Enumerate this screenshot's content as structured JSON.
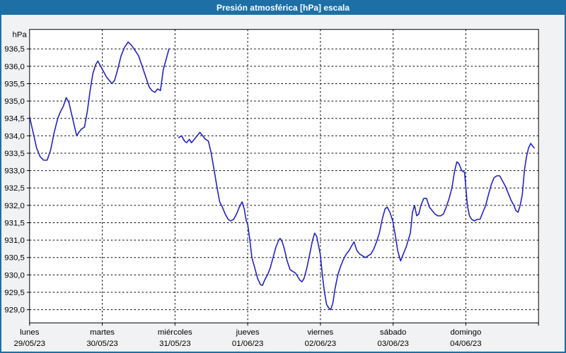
{
  "title": "Presión atmosférica [hPa] escala",
  "colors": {
    "titlebar_bg": "#1d6fa5",
    "window_border": "#1d6fa5",
    "background": "#f1f2f4",
    "plot_bg": "#ffffff",
    "grid": "#000000",
    "axis_text": "#000000",
    "line": "#2222c8",
    "title_text": "#ffffff"
  },
  "chart_data": {
    "type": "line",
    "title": "Presión atmosférica [hPa] escala",
    "ylabel": "hPa",
    "xlabel": "",
    "ylim": [
      928.62,
      937.06
    ],
    "xlim_days": [
      0,
      7
    ],
    "grid": "dashed",
    "legend": "none",
    "y_ticks": [
      936.5,
      936.0,
      935.5,
      935.0,
      934.5,
      934.0,
      933.5,
      933.0,
      932.5,
      932.0,
      931.5,
      931.0,
      930.5,
      930.0,
      929.5,
      929.0
    ],
    "y_tick_labels": [
      "936,5",
      "936,0",
      "935,5",
      "935,0",
      "934,5",
      "934,0",
      "933,5",
      "933,0",
      "932,5",
      "932,0",
      "931,5",
      "931,0",
      "930,5",
      "930,0",
      "929,5",
      "929,0"
    ],
    "x_days": [
      {
        "name": "lunes",
        "date": "29/05/23"
      },
      {
        "name": "martes",
        "date": "30/05/23"
      },
      {
        "name": "miércoles",
        "date": "31/05/23"
      },
      {
        "name": "jueves",
        "date": "01/06/23"
      },
      {
        "name": "viernes",
        "date": "02/06/23"
      },
      {
        "name": "sábado",
        "date": "03/06/23"
      },
      {
        "name": "domingo",
        "date": "04/06/23"
      }
    ],
    "series": [
      {
        "name": "Presión atmosférica",
        "color": "#2222c8",
        "segments": [
          [
            [
              0.0,
              934.55
            ],
            [
              0.048,
              934.1
            ],
            [
              0.097,
              933.65
            ],
            [
              0.145,
              933.4
            ],
            [
              0.194,
              933.3
            ],
            [
              0.242,
              933.3
            ],
            [
              0.29,
              933.6
            ],
            [
              0.339,
              934.1
            ],
            [
              0.387,
              934.5
            ],
            [
              0.426,
              934.7
            ],
            [
              0.465,
              934.85
            ],
            [
              0.503,
              935.1
            ],
            [
              0.542,
              934.95
            ],
            [
              0.581,
              934.6
            ],
            [
              0.62,
              934.25
            ],
            [
              0.649,
              934.0
            ],
            [
              0.678,
              934.1
            ],
            [
              0.716,
              934.2
            ],
            [
              0.755,
              934.25
            ],
            [
              0.794,
              934.7
            ],
            [
              0.833,
              935.3
            ],
            [
              0.871,
              935.8
            ],
            [
              0.91,
              936.05
            ],
            [
              0.939,
              936.15
            ],
            [
              0.978,
              936.0
            ],
            [
              1.017,
              935.85
            ],
            [
              1.055,
              935.7
            ],
            [
              1.094,
              935.6
            ],
            [
              1.133,
              935.5
            ],
            [
              1.171,
              935.6
            ],
            [
              1.21,
              935.9
            ],
            [
              1.259,
              936.3
            ],
            [
              1.307,
              936.55
            ],
            [
              1.355,
              936.7
            ],
            [
              1.404,
              936.6
            ],
            [
              1.452,
              936.45
            ],
            [
              1.5,
              936.3
            ],
            [
              1.549,
              936.0
            ],
            [
              1.597,
              935.7
            ],
            [
              1.646,
              935.4
            ],
            [
              1.684,
              935.3
            ],
            [
              1.723,
              935.25
            ],
            [
              1.762,
              935.35
            ],
            [
              1.8,
              935.3
            ],
            [
              1.839,
              935.9
            ],
            [
              1.878,
              936.2
            ],
            [
              1.917,
              936.5
            ]
          ],
          [
            [
              2.052,
              933.95
            ],
            [
              2.091,
              934.0
            ],
            [
              2.13,
              933.85
            ],
            [
              2.159,
              933.8
            ],
            [
              2.198,
              933.9
            ],
            [
              2.227,
              933.8
            ],
            [
              2.265,
              933.9
            ],
            [
              2.304,
              934.0
            ],
            [
              2.343,
              934.1
            ],
            [
              2.381,
              934.0
            ],
            [
              2.42,
              933.9
            ],
            [
              2.459,
              933.85
            ],
            [
              2.498,
              933.5
            ],
            [
              2.536,
              933.05
            ],
            [
              2.575,
              932.55
            ],
            [
              2.614,
              932.1
            ],
            [
              2.652,
              931.95
            ],
            [
              2.691,
              931.75
            ],
            [
              2.73,
              931.6
            ],
            [
              2.768,
              931.55
            ],
            [
              2.807,
              931.6
            ],
            [
              2.846,
              931.75
            ],
            [
              2.885,
              931.95
            ],
            [
              2.923,
              932.1
            ],
            [
              2.952,
              931.9
            ],
            [
              2.981,
              931.55
            ],
            [
              3.0,
              931.45
            ],
            [
              3.029,
              931.0
            ],
            [
              3.058,
              930.5
            ],
            [
              3.097,
              930.2
            ],
            [
              3.136,
              929.9
            ],
            [
              3.175,
              929.72
            ],
            [
              3.204,
              929.7
            ],
            [
              3.233,
              929.85
            ],
            [
              3.272,
              930.0
            ],
            [
              3.31,
              930.2
            ],
            [
              3.349,
              930.5
            ],
            [
              3.388,
              930.8
            ],
            [
              3.427,
              931.0
            ],
            [
              3.446,
              931.05
            ],
            [
              3.475,
              930.95
            ],
            [
              3.504,
              930.75
            ],
            [
              3.543,
              930.4
            ],
            [
              3.582,
              930.15
            ],
            [
              3.62,
              930.1
            ],
            [
              3.659,
              930.05
            ],
            [
              3.688,
              929.95
            ],
            [
              3.717,
              929.85
            ],
            [
              3.746,
              929.8
            ],
            [
              3.775,
              929.9
            ],
            [
              3.814,
              930.2
            ],
            [
              3.853,
              930.6
            ],
            [
              3.892,
              931.0
            ],
            [
              3.921,
              931.2
            ],
            [
              3.95,
              931.1
            ],
            [
              3.969,
              930.9
            ],
            [
              3.998,
              930.6
            ],
            [
              4.027,
              930.0
            ],
            [
              4.056,
              929.5
            ],
            [
              4.085,
              929.15
            ],
            [
              4.114,
              929.05
            ],
            [
              4.143,
              929.0
            ],
            [
              4.172,
              929.2
            ],
            [
              4.201,
              929.6
            ],
            [
              4.24,
              930.0
            ],
            [
              4.278,
              930.25
            ],
            [
              4.317,
              930.45
            ],
            [
              4.356,
              930.6
            ],
            [
              4.395,
              930.7
            ],
            [
              4.433,
              930.85
            ],
            [
              4.462,
              930.95
            ],
            [
              4.501,
              930.7
            ],
            [
              4.54,
              930.6
            ],
            [
              4.579,
              930.55
            ],
            [
              4.617,
              930.5
            ],
            [
              4.656,
              930.55
            ],
            [
              4.695,
              930.6
            ],
            [
              4.734,
              930.75
            ],
            [
              4.772,
              930.95
            ],
            [
              4.811,
              931.2
            ],
            [
              4.85,
              931.6
            ],
            [
              4.889,
              931.9
            ],
            [
              4.918,
              931.95
            ],
            [
              4.956,
              931.8
            ],
            [
              4.995,
              931.55
            ],
            [
              5.034,
              931.1
            ],
            [
              5.063,
              930.7
            ],
            [
              5.102,
              930.4
            ],
            [
              5.14,
              930.6
            ],
            [
              5.179,
              930.8
            ],
            [
              5.208,
              931.0
            ],
            [
              5.237,
              931.2
            ],
            [
              5.266,
              931.8
            ],
            [
              5.295,
              932.0
            ],
            [
              5.324,
              931.7
            ],
            [
              5.353,
              931.75
            ],
            [
              5.382,
              932.0
            ],
            [
              5.421,
              932.2
            ],
            [
              5.46,
              932.2
            ],
            [
              5.498,
              931.95
            ],
            [
              5.537,
              931.85
            ],
            [
              5.576,
              931.75
            ],
            [
              5.615,
              931.7
            ],
            [
              5.653,
              931.7
            ],
            [
              5.692,
              931.75
            ],
            [
              5.731,
              931.95
            ],
            [
              5.77,
              932.2
            ],
            [
              5.808,
              932.5
            ],
            [
              5.847,
              933.0
            ],
            [
              5.876,
              933.25
            ],
            [
              5.905,
              933.2
            ],
            [
              5.944,
              933.0
            ],
            [
              5.982,
              932.95
            ],
            [
              6.021,
              932.0
            ],
            [
              6.05,
              931.7
            ],
            [
              6.079,
              931.6
            ],
            [
              6.118,
              931.55
            ],
            [
              6.157,
              931.6
            ],
            [
              6.195,
              931.6
            ],
            [
              6.234,
              931.8
            ],
            [
              6.273,
              932.0
            ],
            [
              6.311,
              932.3
            ],
            [
              6.35,
              932.6
            ],
            [
              6.389,
              932.8
            ],
            [
              6.428,
              932.85
            ],
            [
              6.466,
              932.85
            ],
            [
              6.505,
              932.7
            ],
            [
              6.544,
              932.55
            ],
            [
              6.583,
              932.35
            ],
            [
              6.621,
              932.15
            ],
            [
              6.66,
              932.0
            ],
            [
              6.689,
              931.85
            ],
            [
              6.718,
              931.8
            ],
            [
              6.747,
              932.0
            ],
            [
              6.776,
              932.3
            ],
            [
              6.805,
              933.0
            ],
            [
              6.834,
              933.4
            ],
            [
              6.863,
              933.65
            ],
            [
              6.892,
              933.78
            ],
            [
              6.921,
              933.7
            ],
            [
              6.941,
              933.65
            ]
          ]
        ]
      }
    ]
  }
}
